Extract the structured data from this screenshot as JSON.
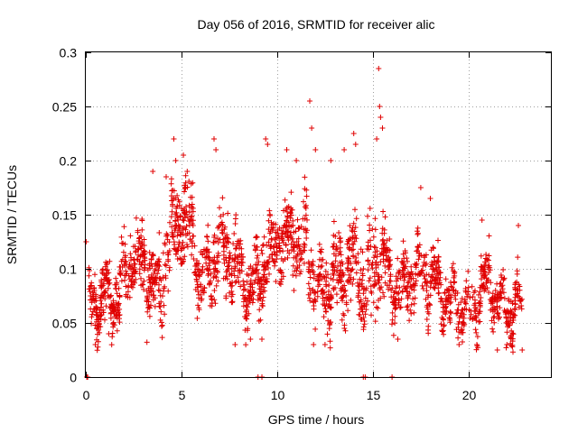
{
  "chart_data": {
    "type": "scatter",
    "title": "Day 056 of 2016, SRMTID for receiver alic",
    "xlabel": "GPS time / hours",
    "ylabel": "SRMTID / TECUs",
    "xlim": [
      0,
      24.3
    ],
    "ylim": [
      0,
      0.3
    ],
    "x_ticks": [
      0,
      5,
      10,
      15,
      20
    ],
    "x_tick_labels": [
      "0",
      "5",
      "10",
      "15",
      "20"
    ],
    "y_ticks": [
      0,
      0.05,
      0.1,
      0.15,
      0.2,
      0.25,
      0.3
    ],
    "y_tick_labels": [
      "0",
      "0.05",
      "0.1",
      "0.15",
      "0.2",
      "0.25",
      "0.3"
    ],
    "grid": true,
    "marker": "+",
    "color": "#e00000",
    "series": [
      {
        "name": "SRMTID",
        "envelope_hours": [
          0.0,
          0.5,
          1.0,
          1.5,
          2.0,
          2.5,
          3.0,
          3.5,
          4.0,
          4.5,
          5.0,
          5.5,
          6.0,
          6.5,
          7.0,
          7.5,
          8.0,
          8.5,
          9.0,
          9.5,
          10.0,
          10.5,
          11.0,
          11.5,
          12.0,
          12.5,
          13.0,
          13.5,
          14.0,
          14.5,
          15.0,
          15.5,
          16.0,
          16.5,
          17.0,
          17.5,
          18.0,
          18.5,
          19.0,
          19.5,
          20.0,
          20.5,
          21.0,
          21.5,
          22.0,
          22.5,
          22.8
        ],
        "envelope_mean": [
          0.07,
          0.065,
          0.075,
          0.07,
          0.095,
          0.11,
          0.1,
          0.085,
          0.09,
          0.13,
          0.15,
          0.14,
          0.085,
          0.1,
          0.12,
          0.11,
          0.1,
          0.08,
          0.09,
          0.11,
          0.13,
          0.13,
          0.125,
          0.12,
          0.08,
          0.075,
          0.09,
          0.095,
          0.11,
          0.085,
          0.1,
          0.11,
          0.08,
          0.08,
          0.095,
          0.1,
          0.09,
          0.08,
          0.07,
          0.065,
          0.065,
          0.07,
          0.09,
          0.07,
          0.06,
          0.065,
          0.07
        ],
        "envelope_spread": [
          0.025,
          0.025,
          0.03,
          0.025,
          0.03,
          0.035,
          0.04,
          0.035,
          0.04,
          0.045,
          0.045,
          0.04,
          0.03,
          0.035,
          0.04,
          0.035,
          0.03,
          0.03,
          0.035,
          0.04,
          0.04,
          0.035,
          0.035,
          0.04,
          0.035,
          0.035,
          0.04,
          0.035,
          0.04,
          0.04,
          0.05,
          0.04,
          0.03,
          0.03,
          0.035,
          0.03,
          0.03,
          0.025,
          0.025,
          0.02,
          0.02,
          0.025,
          0.03,
          0.025,
          0.025,
          0.025,
          0.02
        ],
        "points": [
          [
            0.02,
            0.125
          ],
          [
            0.05,
            0.0
          ],
          [
            0.1,
            0.0
          ],
          [
            9.0,
            0.0
          ],
          [
            9.2,
            0.0
          ],
          [
            14.5,
            0.0
          ],
          [
            14.6,
            0.0
          ],
          [
            16.0,
            0.0
          ],
          [
            4.6,
            0.22
          ],
          [
            4.7,
            0.2
          ],
          [
            5.1,
            0.205
          ],
          [
            5.3,
            0.19
          ],
          [
            6.7,
            0.22
          ],
          [
            6.8,
            0.21
          ],
          [
            9.4,
            0.22
          ],
          [
            9.5,
            0.215
          ],
          [
            10.5,
            0.21
          ],
          [
            11.0,
            0.2
          ],
          [
            11.7,
            0.255
          ],
          [
            11.8,
            0.23
          ],
          [
            12.0,
            0.21
          ],
          [
            12.8,
            0.2
          ],
          [
            13.5,
            0.21
          ],
          [
            14.0,
            0.225
          ],
          [
            14.1,
            0.215
          ],
          [
            15.3,
            0.285
          ],
          [
            15.35,
            0.25
          ],
          [
            15.4,
            0.24
          ],
          [
            15.5,
            0.23
          ],
          [
            15.2,
            0.22
          ],
          [
            17.5,
            0.175
          ],
          [
            18.0,
            0.165
          ],
          [
            20.7,
            0.145
          ],
          [
            22.6,
            0.14
          ],
          [
            3.5,
            0.19
          ],
          [
            4.2,
            0.185
          ],
          [
            7.8,
            0.03
          ],
          [
            8.6,
            0.035
          ],
          [
            9.2,
            0.035
          ],
          [
            11.9,
            0.03
          ],
          [
            12.5,
            0.03
          ],
          [
            16.3,
            0.035
          ],
          [
            19.5,
            0.03
          ],
          [
            21.5,
            0.025
          ],
          [
            22.0,
            0.03
          ],
          [
            22.8,
            0.025
          ],
          [
            0.5,
            0.03
          ],
          [
            1.2,
            0.04
          ]
        ]
      }
    ]
  }
}
